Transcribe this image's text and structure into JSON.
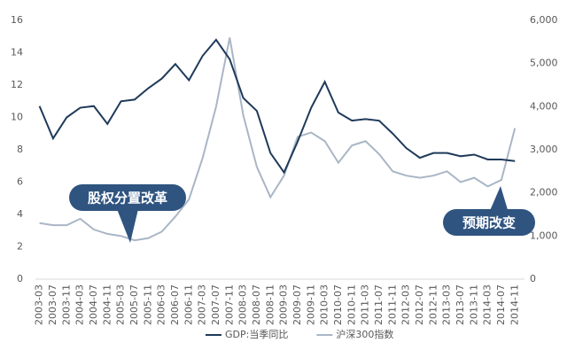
{
  "chart_data": {
    "type": "line",
    "categories": [
      "2003-03",
      "2003-07",
      "2003-11",
      "2004-03",
      "2004-07",
      "2004-11",
      "2005-03",
      "2005-07",
      "2005-11",
      "2006-03",
      "2006-07",
      "2006-11",
      "2007-03",
      "2007-07",
      "2007-11",
      "2008-03",
      "2008-07",
      "2008-11",
      "2009-03",
      "2009-07",
      "2009-11",
      "2010-03",
      "2010-07",
      "2010-11",
      "2011-03",
      "2011-07",
      "2011-11",
      "2012-03",
      "2012-07",
      "2012-11",
      "2013-03",
      "2013-07",
      "2013-11",
      "2014-03",
      "2014-07",
      "2014-11"
    ],
    "series": [
      {
        "name": "GDP:当季同比",
        "color": "#1f3a5a",
        "values": [
          10.7,
          8.7,
          10.0,
          10.6,
          10.7,
          9.6,
          11.0,
          11.1,
          11.8,
          12.4,
          13.3,
          12.3,
          13.8,
          14.8,
          13.6,
          11.2,
          10.4,
          7.8,
          6.6,
          8.5,
          10.6,
          12.2,
          10.3,
          9.8,
          9.9,
          9.8,
          9.0,
          8.1,
          7.5,
          7.8,
          7.8,
          7.6,
          7.7,
          7.4,
          7.4,
          7.3
        ]
      },
      {
        "name": "沪深300指数",
        "color": "#a9b6c6",
        "axis": "y2",
        "values": [
          1300,
          1250,
          1250,
          1400,
          1150,
          1050,
          1000,
          900,
          950,
          1100,
          1450,
          1850,
          2800,
          4000,
          5600,
          3800,
          2600,
          1900,
          2400,
          3300,
          3400,
          3200,
          2700,
          3100,
          3200,
          2900,
          2500,
          2400,
          2350,
          2400,
          2500,
          2250,
          2350,
          2150,
          2300,
          3500
        ]
      }
    ],
    "ylim": [
      0,
      16
    ],
    "yticks": [
      0,
      2,
      4,
      6,
      8,
      10,
      12,
      14,
      16
    ],
    "y2lim": [
      0,
      6000
    ],
    "y2ticks": [
      0,
      {
        "value": 1000,
        "label": "1,000"
      },
      {
        "value": 2000,
        "label": "2,000"
      },
      {
        "value": 3000,
        "label": "3,000"
      },
      {
        "value": 4000,
        "label": "4,000"
      },
      {
        "value": 5000,
        "label": "5,000"
      },
      {
        "value": 6000,
        "label": "6,000"
      }
    ],
    "annotations": [
      "股权分置改革",
      "预期改变"
    ],
    "legend": "bottom"
  }
}
